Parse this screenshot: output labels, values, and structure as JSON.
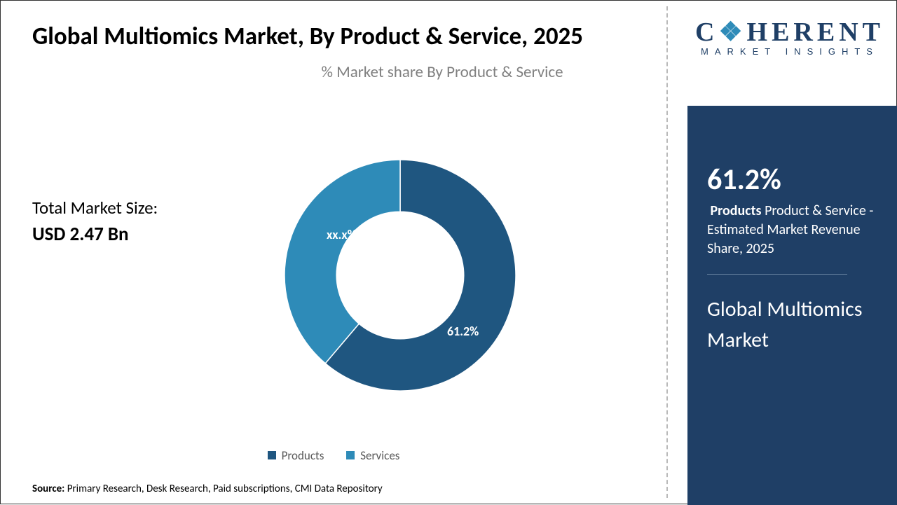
{
  "title": "Global Multiomics Market, By Product & Service, 2025",
  "subtitle": "% Market share By Product & Service",
  "market_size": {
    "label": "Total Market Size:",
    "value": "USD 2.47 Bn"
  },
  "chart": {
    "type": "donut",
    "inner_radius_ratio": 0.55,
    "background_color": "#ffffff",
    "segments": [
      {
        "name": "Products",
        "value": 61.2,
        "label": "61.2%",
        "color": "#1f5680"
      },
      {
        "name": "Services",
        "value": 38.8,
        "label": "xx.x%",
        "color": "#2e8bb8"
      }
    ],
    "label_color": "#ffffff",
    "label_fontsize": 18,
    "legend_fontsize": 17,
    "legend_text_color": "#595959"
  },
  "legend": [
    {
      "label": "Products",
      "color": "#1f5680"
    },
    {
      "label": "Services",
      "color": "#2e8bb8"
    }
  ],
  "source": {
    "label": "Source:",
    "text": " Primary Research, Desk Research, Paid subscriptions, CMI Data Repository"
  },
  "logo": {
    "line1_pre": "C",
    "line1_accent": "❖",
    "line1_post": "HERENT",
    "line2": "MARKET INSIGHTS",
    "primary_color": "#1f3f66",
    "accent_color": "#2e8bb8"
  },
  "side_panel": {
    "background": "#1f3f66",
    "stat_pct": "61.2%",
    "stat_bold": "Products",
    "stat_rest": " Product & Service - Estimated Market Revenue Share, 2025",
    "market_name": "Global Multiomics Market",
    "divider_color": "#6c87a3"
  }
}
